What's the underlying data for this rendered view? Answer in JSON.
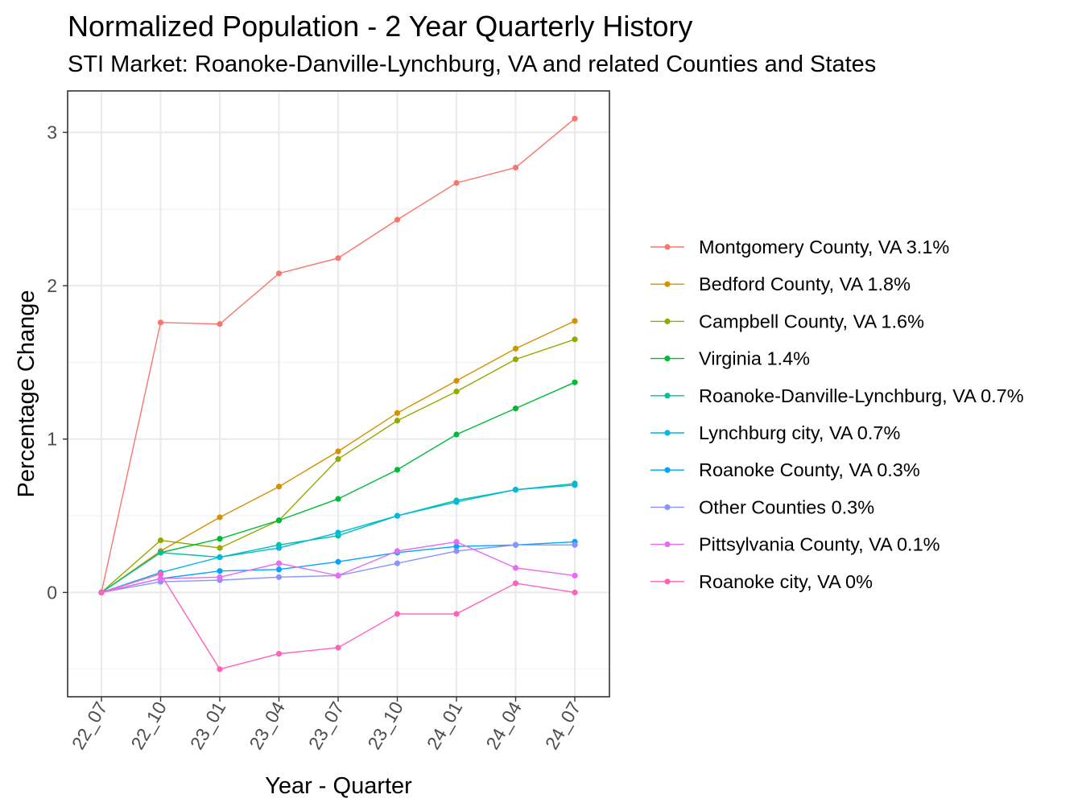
{
  "chart_data": {
    "type": "line",
    "title": "Normalized Population - 2 Year Quarterly History",
    "subtitle": "STI Market: Roanoke-Danville-Lynchburg, VA and related Counties and States",
    "xlabel": "Year - Quarter",
    "ylabel": "Percentage Change",
    "categories": [
      "22_07",
      "22_10",
      "23_01",
      "23_04",
      "23_07",
      "23_10",
      "24_01",
      "24_04",
      "24_07"
    ],
    "ylim": [
      -0.68,
      3.27
    ],
    "yticks": [
      0,
      1,
      2,
      3
    ],
    "grid": true,
    "legend_position": "right",
    "series": [
      {
        "name": "Montgomery County, VA 3.1%",
        "color": "#F8766D",
        "values": [
          0,
          1.76,
          1.75,
          2.08,
          2.18,
          2.43,
          2.67,
          2.77,
          3.09
        ]
      },
      {
        "name": "Bedford County, VA 1.8%",
        "color": "#D39200",
        "values": [
          0,
          0.27,
          0.49,
          0.69,
          0.92,
          1.17,
          1.38,
          1.59,
          1.77
        ]
      },
      {
        "name": "Campbell County, VA 1.6%",
        "color": "#93AA00",
        "values": [
          0,
          0.34,
          0.29,
          0.47,
          0.87,
          1.12,
          1.31,
          1.52,
          1.65
        ]
      },
      {
        "name": "Virginia 1.4%",
        "color": "#00BA38",
        "values": [
          0,
          0.26,
          0.35,
          0.47,
          0.61,
          0.8,
          1.03,
          1.2,
          1.37
        ]
      },
      {
        "name": "Roanoke-Danville-Lynchburg, VA 0.7%",
        "color": "#00C19F",
        "values": [
          0,
          0.26,
          0.23,
          0.31,
          0.37,
          0.5,
          0.6,
          0.67,
          0.71
        ]
      },
      {
        "name": "Lynchburg city, VA 0.7%",
        "color": "#00B9E3",
        "values": [
          0,
          0.13,
          0.23,
          0.29,
          0.39,
          0.5,
          0.59,
          0.67,
          0.7
        ]
      },
      {
        "name": "Roanoke County, VA 0.3%",
        "color": "#00A5FF",
        "values": [
          0,
          0.09,
          0.14,
          0.15,
          0.2,
          0.26,
          0.3,
          0.31,
          0.33
        ]
      },
      {
        "name": "Other Counties 0.3%",
        "color": "#8B93FF",
        "values": [
          0,
          0.07,
          0.08,
          0.1,
          0.11,
          0.19,
          0.27,
          0.31,
          0.31
        ]
      },
      {
        "name": "Pittsylvania County, VA 0.1%",
        "color": "#E76BF3",
        "values": [
          0,
          0.09,
          0.1,
          0.19,
          0.11,
          0.27,
          0.33,
          0.16,
          0.11
        ]
      },
      {
        "name": "Roanoke city, VA 0%",
        "color": "#FF62BC",
        "values": [
          0,
          0.12,
          -0.5,
          -0.4,
          -0.36,
          -0.14,
          -0.14,
          0.06,
          0.0
        ]
      }
    ]
  }
}
